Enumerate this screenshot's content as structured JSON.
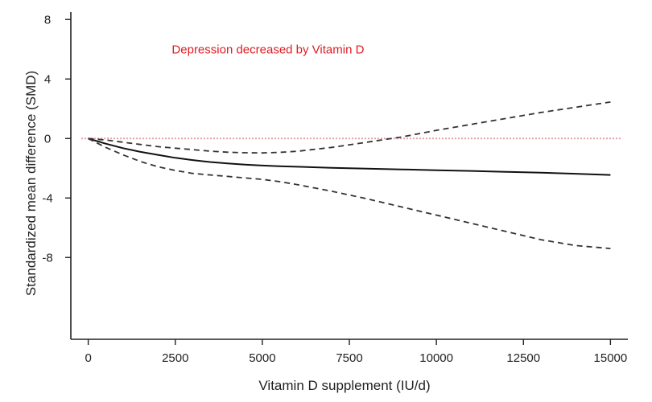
{
  "chart_data": {
    "type": "line",
    "title": "",
    "xlabel": "Vitamin D supplement (IU/d)",
    "ylabel": "Standardized mean difference (SMD)",
    "xlim": [
      -500,
      15500
    ],
    "ylim": [
      -13.5,
      8.5
    ],
    "xticks": [
      0,
      2500,
      5000,
      7500,
      10000,
      12500,
      15000
    ],
    "yticks": [
      8,
      4,
      0,
      -4,
      -8
    ],
    "annotation": {
      "text": "Depression decreased by Vitamin D",
      "color": "#e01b24",
      "x": 2400,
      "y": 6
    },
    "reference_line": {
      "y": 0,
      "color": "#e8a0a8",
      "style": "dotted"
    },
    "grid": false,
    "legend": "none",
    "series": [
      {
        "role": "estimate",
        "style": "solid",
        "color": "#111111",
        "x": [
          0,
          500,
          1000,
          1500,
          2000,
          2500,
          3000,
          3500,
          4000,
          4500,
          5000,
          5500,
          6000,
          7000,
          8000,
          9000,
          10000,
          11000,
          12000,
          13000,
          14000,
          15000
        ],
        "y": [
          0,
          -0.35,
          -0.65,
          -0.9,
          -1.1,
          -1.3,
          -1.45,
          -1.58,
          -1.68,
          -1.76,
          -1.82,
          -1.87,
          -1.9,
          -1.97,
          -2.03,
          -2.08,
          -2.13,
          -2.18,
          -2.24,
          -2.3,
          -2.37,
          -2.45
        ]
      },
      {
        "role": "upper confidence limit",
        "style": "dashed",
        "color": "#333333",
        "x": [
          0,
          500,
          1000,
          1500,
          2000,
          2500,
          3000,
          3500,
          4000,
          4500,
          5000,
          5500,
          6000,
          7000,
          8000,
          9000,
          10000,
          11000,
          12000,
          13000,
          14000,
          15000
        ],
        "y": [
          0,
          -0.1,
          -0.25,
          -0.4,
          -0.55,
          -0.65,
          -0.75,
          -0.85,
          -0.92,
          -0.96,
          -0.97,
          -0.93,
          -0.86,
          -0.6,
          -0.25,
          0.1,
          0.55,
          0.95,
          1.35,
          1.75,
          2.1,
          2.45
        ]
      },
      {
        "role": "lower confidence limit",
        "style": "dashed",
        "color": "#333333",
        "x": [
          0,
          500,
          1000,
          1500,
          2000,
          2500,
          3000,
          3500,
          4000,
          4500,
          5000,
          5500,
          6000,
          7000,
          8000,
          9000,
          10000,
          11000,
          12000,
          13000,
          14000,
          15000
        ],
        "y": [
          0,
          -0.6,
          -1.1,
          -1.55,
          -1.9,
          -2.15,
          -2.35,
          -2.45,
          -2.55,
          -2.65,
          -2.75,
          -2.9,
          -3.1,
          -3.55,
          -4.05,
          -4.6,
          -5.15,
          -5.7,
          -6.25,
          -6.8,
          -7.2,
          -7.4
        ]
      }
    ]
  }
}
